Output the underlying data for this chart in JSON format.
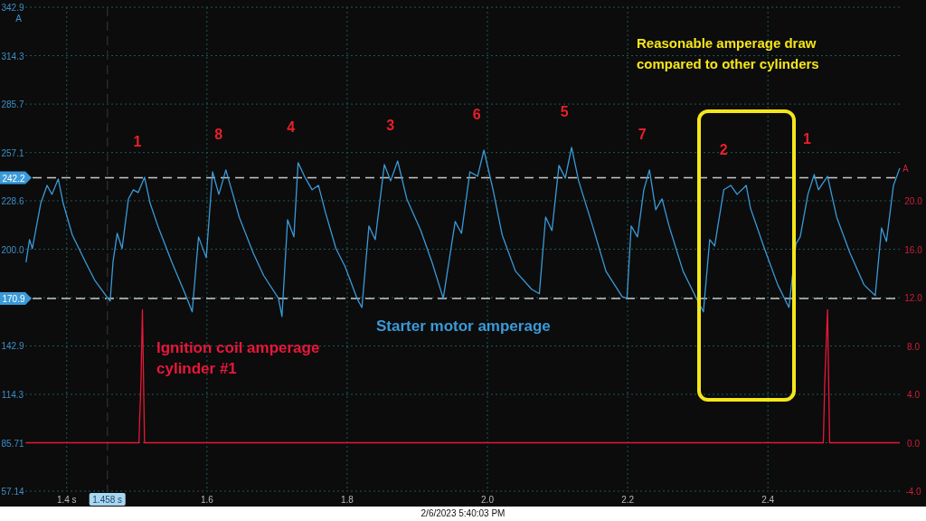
{
  "chart_data": {
    "type": "line",
    "x": [
      1.342,
      1.347,
      1.351,
      1.363,
      1.372,
      1.379,
      1.388,
      1.395,
      1.408,
      1.427,
      1.44,
      1.457,
      1.462,
      1.466,
      1.472,
      1.479,
      1.488,
      1.495,
      1.502,
      1.511,
      1.519,
      1.53,
      1.55,
      1.569,
      1.579,
      1.588,
      1.599,
      1.608,
      1.617,
      1.627,
      1.637,
      1.646,
      1.666,
      1.681,
      1.702,
      1.707,
      1.715,
      1.724,
      1.73,
      1.739,
      1.75,
      1.759,
      1.769,
      1.784,
      1.797,
      1.814,
      1.821,
      1.831,
      1.84,
      1.853,
      1.862,
      1.872,
      1.885,
      1.905,
      1.921,
      1.937,
      1.954,
      1.963,
      1.975,
      1.986,
      1.995,
      2.008,
      2.021,
      2.04,
      2.063,
      2.074,
      2.083,
      2.092,
      2.102,
      2.111,
      2.12,
      2.13,
      2.15,
      2.169,
      2.192,
      2.199,
      2.205,
      2.214,
      2.223,
      2.231,
      2.24,
      2.249,
      2.259,
      2.279,
      2.298,
      2.308,
      2.317,
      2.324,
      2.337,
      2.347,
      2.356,
      2.369,
      2.375,
      2.395,
      2.414,
      2.43,
      2.44,
      2.446,
      2.457,
      2.466,
      2.472,
      2.485,
      2.498,
      2.517,
      2.537,
      2.553,
      2.562,
      2.569,
      2.579,
      2.588
    ],
    "series": [
      {
        "name": "Starter motor amperage",
        "color": "#3a9ad9",
        "values": [
          192.3,
          205.7,
          200.4,
          227.1,
          237.7,
          232.4,
          241.5,
          227.1,
          208.4,
          192.3,
          181.7,
          172.0,
          169.4,
          192.3,
          209.4,
          200.4,
          229.7,
          235.1,
          233.5,
          242.5,
          227.1,
          213.7,
          192.3,
          173.6,
          163.0,
          207.3,
          195.0,
          245.7,
          232.4,
          246.8,
          232.4,
          219.0,
          197.7,
          184.4,
          171.0,
          160.3,
          217.4,
          207.3,
          251.1,
          243.1,
          235.1,
          237.7,
          221.7,
          200.4,
          189.7,
          171.0,
          165.6,
          213.7,
          205.7,
          250.0,
          240.4,
          252.1,
          229.7,
          211.0,
          192.3,
          171.0,
          216.4,
          209.4,
          245.7,
          243.1,
          258.5,
          235.1,
          208.4,
          187.0,
          176.4,
          173.7,
          219.0,
          211.0,
          249.5,
          242.0,
          260.2,
          240.4,
          213.7,
          187.0,
          172.0,
          171.0,
          213.7,
          207.3,
          235.1,
          246.8,
          223.3,
          229.7,
          213.7,
          187.0,
          171.0,
          163.0,
          205.7,
          201.9,
          235.1,
          237.7,
          232.4,
          237.7,
          224.4,
          200.4,
          179.0,
          165.6,
          203.3,
          207.3,
          232.4,
          244.1,
          235.1,
          243.1,
          219.0,
          197.7,
          179.0,
          172.6,
          212.6,
          204.6,
          237.7,
          247.9
        ]
      },
      {
        "name": "Ignition coil amperage cylinder #1",
        "color": "#e8173a",
        "axis": "y2",
        "x": [
          1.342,
          1.503,
          1.506,
          1.508,
          1.511,
          2.479,
          2.481,
          2.485,
          2.488,
          2.588
        ],
        "values": [
          0,
          0,
          5.2,
          11.0,
          0,
          0,
          5.0,
          11.0,
          0,
          0
        ]
      }
    ],
    "ylabel": "A",
    "y2label": "A",
    "xlim": [
      1.341,
      2.588
    ],
    "xticks": [
      {
        "value": 1.4,
        "label": "1.4 s"
      },
      1.6,
      1.8,
      {
        "value": 2.0,
        "label": "2.0"
      },
      2.2,
      2.4
    ],
    "ylim": [
      57.14,
      342.9
    ],
    "yticks": [
      342.9,
      314.3,
      285.7,
      257.1,
      228.6,
      {
        "value": 200,
        "label": "200.0"
      },
      {
        "value": 171.4,
        "label": null
      },
      142.9,
      114.3,
      85.71,
      57.14
    ],
    "y2lim": [
      -4,
      36
    ],
    "y2ticks": [
      {
        "value": -4,
        "label": "-4.0"
      },
      {
        "value": 0,
        "label": "0.0"
      },
      {
        "value": 4,
        "label": "4.0"
      },
      {
        "value": 8,
        "label": "8.0"
      },
      {
        "value": 12,
        "label": "12.0"
      },
      {
        "value": 16,
        "label": "16.0"
      },
      {
        "value": 20,
        "label": "20.0"
      }
    ],
    "grid": true,
    "marker": "none",
    "line_style": "solid",
    "ref_lines": [
      {
        "axis": "y",
        "value": 242.2,
        "label": "242.2",
        "color": "#c8c8c8",
        "line_style": "dashed"
      },
      {
        "axis": "y",
        "value": 170.9,
        "label": "170.9",
        "color": "#c8c8c8",
        "line_style": "dashed"
      },
      {
        "axis": "x",
        "value": 1.458,
        "label": "1.458 s",
        "color": "#2a2a2a",
        "line_style": "dashed"
      }
    ],
    "annotations": [
      {
        "text": "1",
        "x": 1.511,
        "y": 242.5
      },
      {
        "text": "8",
        "x": 1.627,
        "y": 246.8
      },
      {
        "text": "4",
        "x": 1.73,
        "y": 251.1
      },
      {
        "text": "3",
        "x": 1.872,
        "y": 252.1
      },
      {
        "text": "6",
        "x": 1.995,
        "y": 258.5
      },
      {
        "text": "5",
        "x": 2.12,
        "y": 260.2
      },
      {
        "text": "7",
        "x": 2.231,
        "y": 246.8
      },
      {
        "text": "2",
        "x": 2.347,
        "y": 237.7
      },
      {
        "text": "1",
        "x": 2.466,
        "y": 244.1
      },
      "Reasonable amperage draw compared to other cylinders",
      "2/6/2023 5:40:03 PM"
    ]
  }
}
